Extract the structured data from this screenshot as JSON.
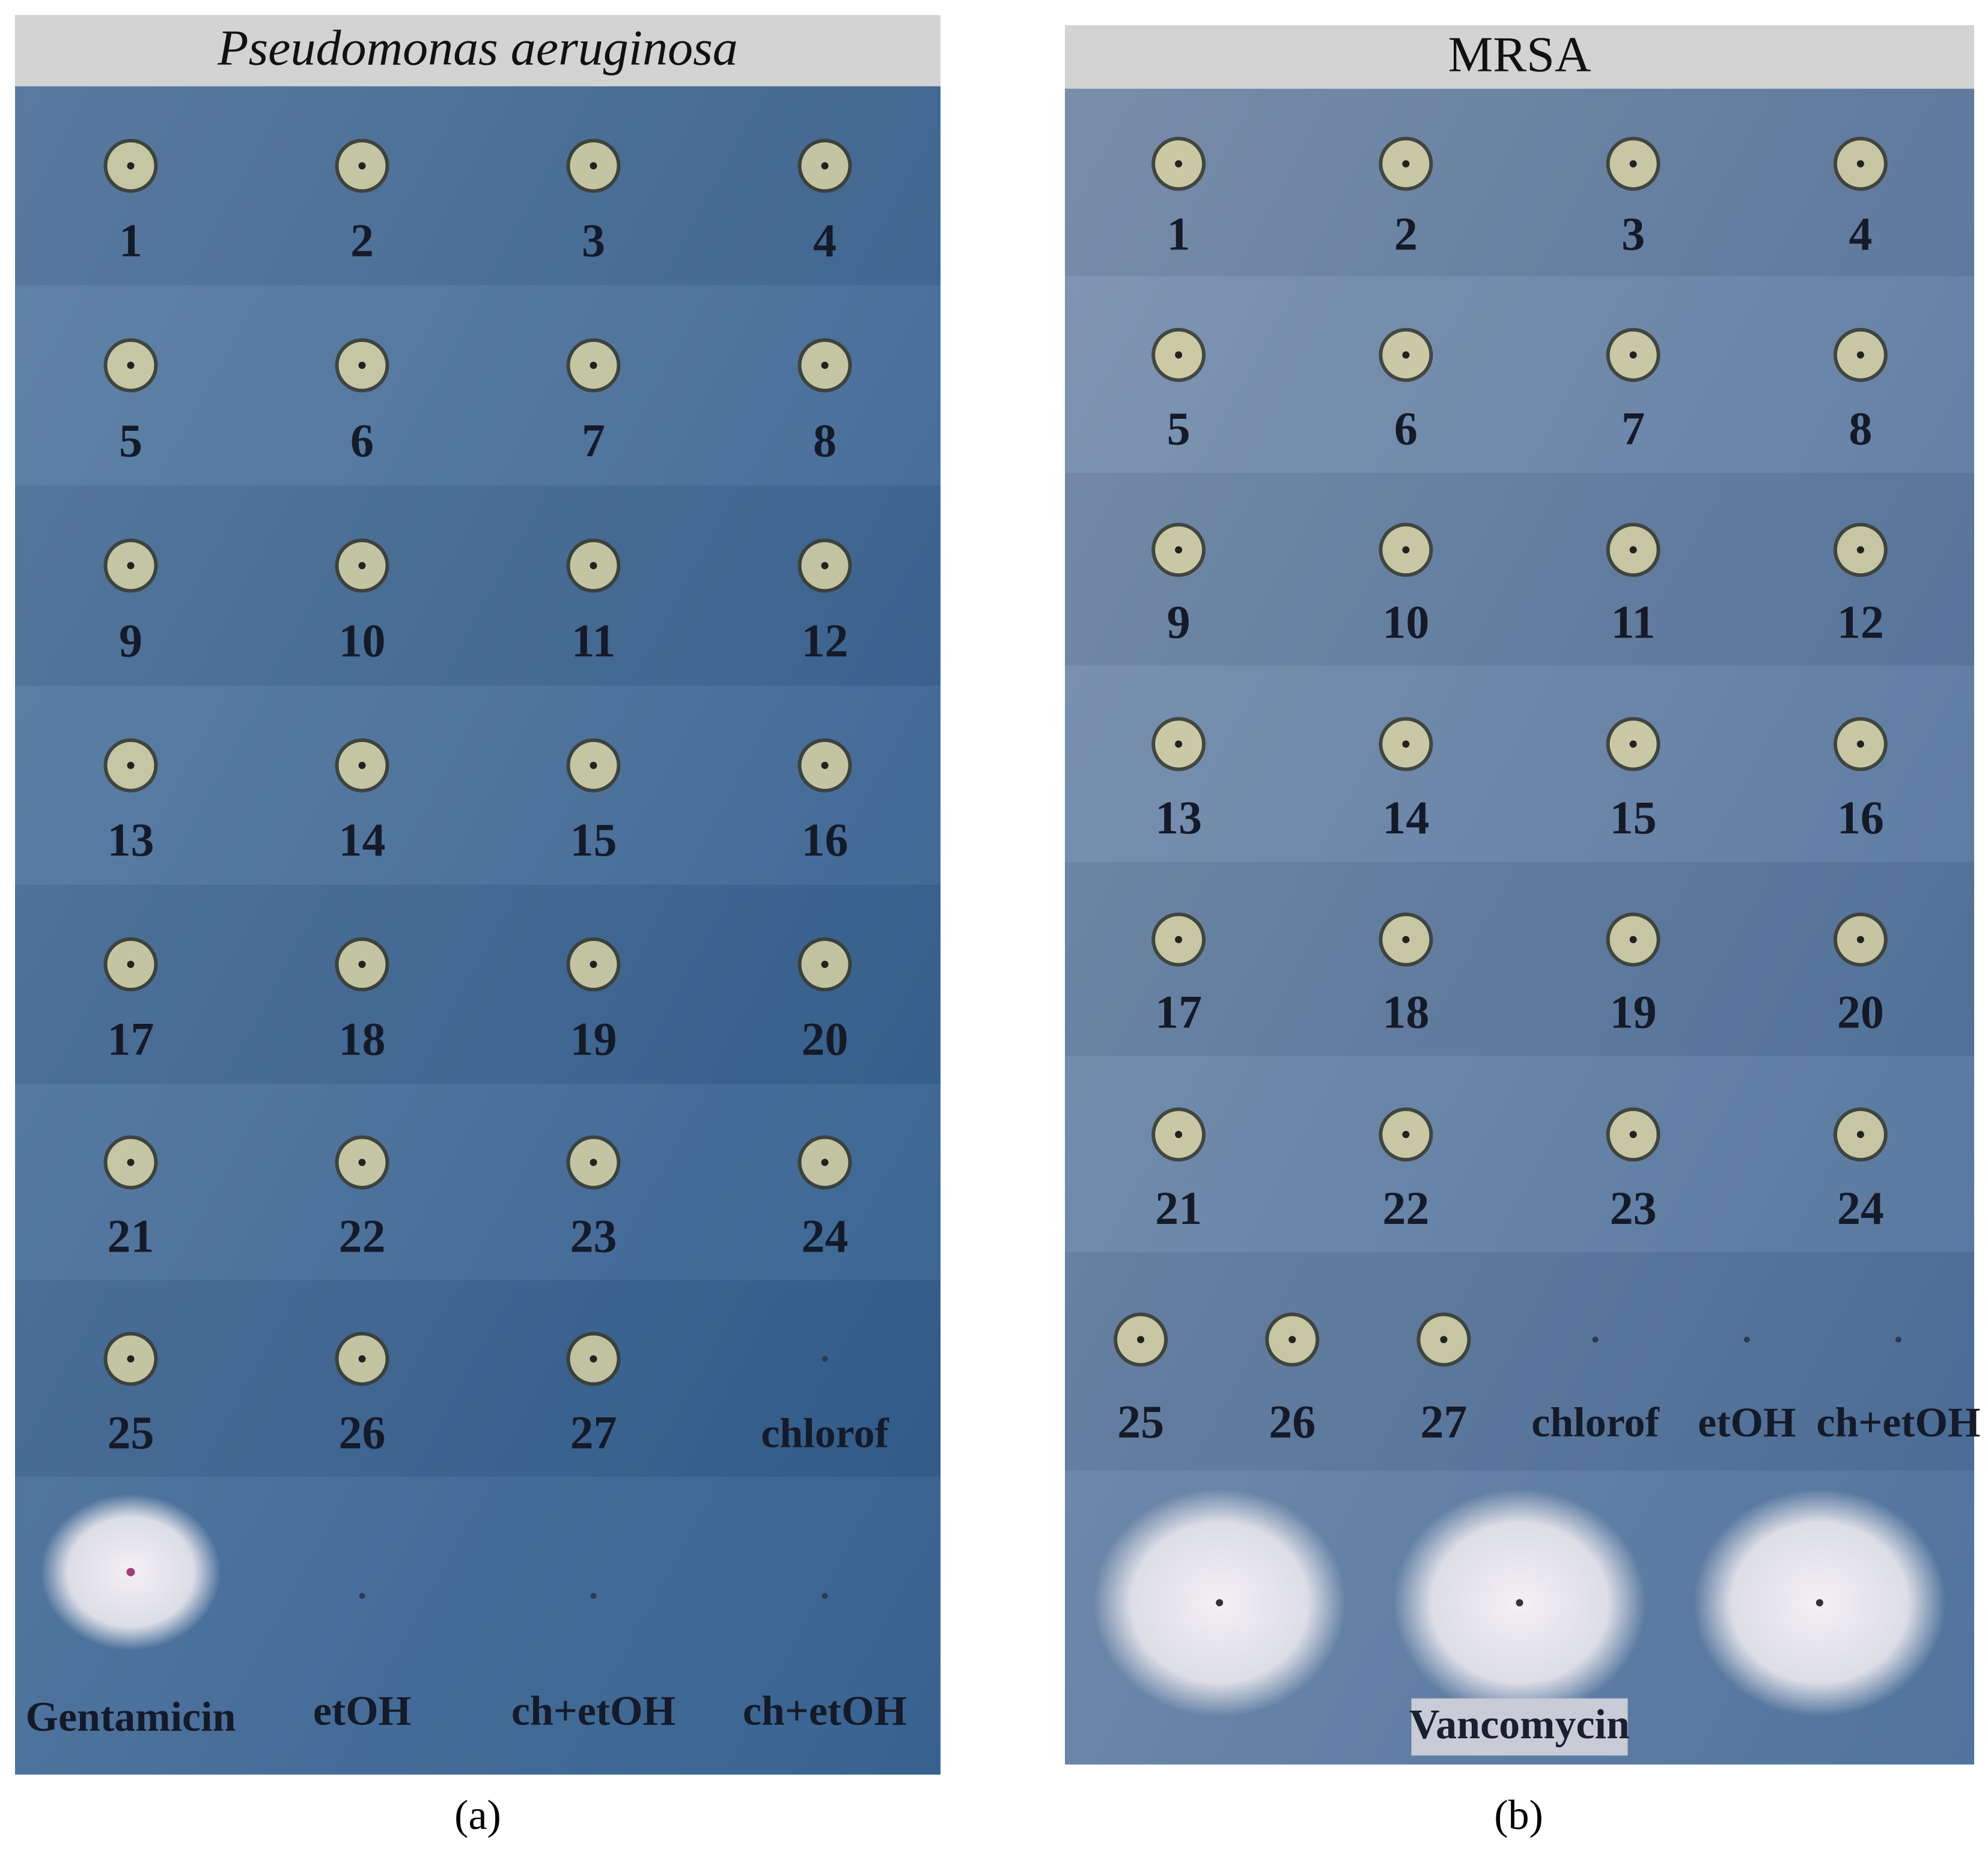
{
  "panels": [
    {
      "title": "Pseudomonas aeruginosa",
      "caption": "(a)",
      "rows": [
        [
          "1",
          "2",
          "3",
          "4"
        ],
        [
          "5",
          "6",
          "7",
          "8"
        ],
        [
          "9",
          "10",
          "11",
          "12"
        ],
        [
          "13",
          "14",
          "15",
          "16"
        ],
        [
          "17",
          "18",
          "19",
          "20"
        ],
        [
          "21",
          "22",
          "23",
          "24"
        ],
        [
          "25",
          "26",
          "27",
          "chlorof"
        ],
        [
          "Gentamicin",
          "etOH",
          "ch+etOH",
          "ch+etOH"
        ]
      ]
    },
    {
      "title": "MRSA",
      "caption": "(b)",
      "rows": [
        [
          "1",
          "2",
          "3",
          "4"
        ],
        [
          "5",
          "6",
          "7",
          "8"
        ],
        [
          "9",
          "10",
          "11",
          "12"
        ],
        [
          "13",
          "14",
          "15",
          "16"
        ],
        [
          "17",
          "18",
          "19",
          "20"
        ],
        [
          "21",
          "22",
          "23",
          "24"
        ],
        [
          "25",
          "26",
          "27",
          "chlorof",
          "etOH",
          "ch+etOH"
        ],
        [
          "Vancomycin"
        ]
      ]
    }
  ]
}
